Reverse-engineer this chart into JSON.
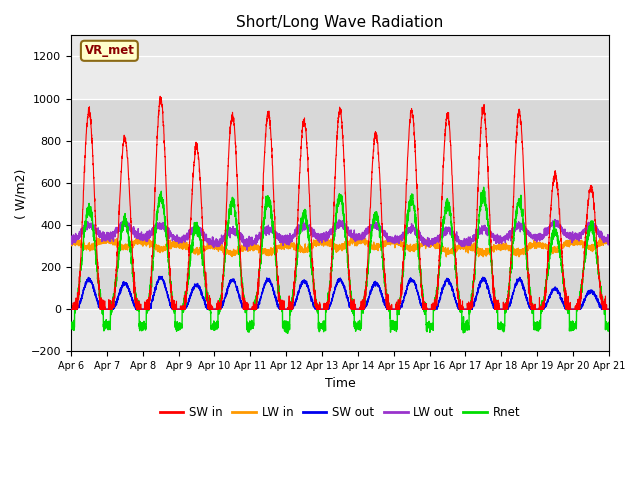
{
  "title": "Short/Long Wave Radiation",
  "xlabel": "Time",
  "ylabel": "( W/m2)",
  "ylim": [
    -200,
    1300
  ],
  "yticks": [
    -200,
    0,
    200,
    400,
    600,
    800,
    1000,
    1200
  ],
  "xlim": [
    0,
    15
  ],
  "figure_bg": "#ffffff",
  "plot_bg_light": "#f0f0f0",
  "plot_bg_dark": "#e0e0e0",
  "annotation_text": "VR_met",
  "annotation_box_facecolor": "#ffffcc",
  "annotation_box_edge": "#8B6914",
  "colors": {
    "SW_in": "#ff0000",
    "LW_in": "#ff9900",
    "SW_out": "#0000ee",
    "LW_out": "#9933cc",
    "Rnet": "#00dd00"
  },
  "legend_labels": [
    "SW in",
    "LW in",
    "SW out",
    "LW out",
    "Rnet"
  ],
  "xtick_labels": [
    "Apr 6",
    "Apr 7",
    "Apr 8",
    "Apr 9",
    "Apr 10",
    "Apr 11",
    "Apr 12",
    "Apr 13",
    "Apr 14",
    "Apr 15",
    "Apr 16",
    "Apr 17",
    "Apr 18",
    "Apr 19",
    "Apr 20",
    "Apr 21"
  ],
  "xtick_positions": [
    0,
    1,
    2,
    3,
    4,
    5,
    6,
    7,
    8,
    9,
    10,
    11,
    12,
    13,
    14,
    15
  ]
}
